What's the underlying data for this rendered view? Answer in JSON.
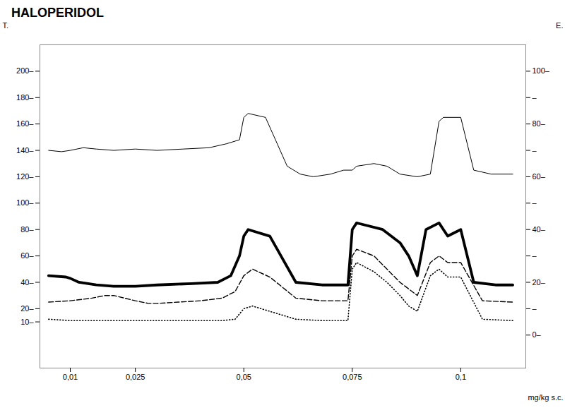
{
  "chart_data": {
    "type": "line",
    "title": "HALOPERIDOL",
    "xlabel": "mg/kg s.c.",
    "ylabel": "T.",
    "y2label": "E.",
    "xlim": [
      0.003,
      0.115
    ],
    "xticks": [
      {
        "value": 0.01,
        "label": "0,01"
      },
      {
        "value": 0.025,
        "label": "0,025"
      },
      {
        "value": 0.05,
        "label": "0,05"
      },
      {
        "value": 0.075,
        "label": "0,075"
      },
      {
        "value": 0.1,
        "label": "0,1"
      }
    ],
    "ylim": [
      -25,
      220
    ],
    "yticks": [
      {
        "value": 10,
        "label": "10–"
      },
      {
        "value": 20,
        "label": "20–"
      },
      {
        "value": 40,
        "label": "40–"
      },
      {
        "value": 60,
        "label": "60–"
      },
      {
        "value": 80,
        "label": "80–"
      },
      {
        "value": 100,
        "label": "100–"
      },
      {
        "value": 120,
        "label": "120–"
      },
      {
        "value": 140,
        "label": "140–"
      },
      {
        "value": 160,
        "label": "160–"
      },
      {
        "value": 180,
        "label": "180–"
      },
      {
        "value": 200,
        "label": "200–"
      }
    ],
    "y2lim": [
      -12.5,
      110
    ],
    "y2ticks": [
      {
        "value": 0,
        "label": "0–"
      },
      {
        "value": 10,
        "label": "–"
      },
      {
        "value": 20,
        "label": "20–"
      },
      {
        "value": 30,
        "label": "–"
      },
      {
        "value": 40,
        "label": "40–"
      },
      {
        "value": 50,
        "label": "–"
      },
      {
        "value": 60,
        "label": "60–"
      },
      {
        "value": 70,
        "label": "–"
      },
      {
        "value": 80,
        "label": "80–"
      },
      {
        "value": 90,
        "label": "–"
      },
      {
        "value": 100,
        "label": "100–"
      }
    ],
    "grid": false,
    "series": [
      {
        "color": "#000000",
        "line_style": "solid",
        "x": [
          0.005,
          0.008,
          0.01,
          0.013,
          0.016,
          0.02,
          0.025,
          0.03,
          0.036,
          0.042,
          0.046,
          0.049,
          0.05,
          0.051,
          0.055,
          0.06,
          0.063,
          0.066,
          0.07,
          0.073,
          0.075,
          0.076,
          0.08,
          0.083,
          0.086,
          0.09,
          0.093,
          0.095,
          0.096,
          0.1,
          0.103,
          0.107,
          0.112
        ],
        "values": [
          140,
          139,
          140,
          142,
          141,
          140,
          141,
          140,
          141,
          142,
          145,
          148,
          165,
          168,
          165,
          128,
          122,
          120,
          122,
          125,
          125,
          128,
          130,
          128,
          122,
          120,
          122,
          162,
          165,
          165,
          125,
          122,
          122
        ]
      },
      {
        "color": "#000000",
        "line_style": "thick",
        "x": [
          0.005,
          0.009,
          0.01,
          0.012,
          0.016,
          0.02,
          0.025,
          0.03,
          0.038,
          0.044,
          0.047,
          0.049,
          0.05,
          0.051,
          0.056,
          0.062,
          0.068,
          0.072,
          0.074,
          0.075,
          0.076,
          0.082,
          0.086,
          0.088,
          0.09,
          0.092,
          0.095,
          0.097,
          0.1,
          0.103,
          0.108,
          0.112
        ],
        "values": [
          45,
          44,
          43,
          40,
          38,
          37,
          37,
          38,
          39,
          40,
          45,
          60,
          75,
          80,
          75,
          40,
          38,
          38,
          38,
          80,
          85,
          80,
          70,
          60,
          45,
          80,
          85,
          75,
          80,
          40,
          38,
          38
        ]
      },
      {
        "color": "#000000",
        "line_style": "dashed",
        "x": [
          0.005,
          0.01,
          0.015,
          0.018,
          0.02,
          0.025,
          0.028,
          0.03,
          0.035,
          0.04,
          0.045,
          0.048,
          0.05,
          0.052,
          0.056,
          0.062,
          0.068,
          0.072,
          0.074,
          0.075,
          0.076,
          0.08,
          0.083,
          0.086,
          0.088,
          0.09,
          0.093,
          0.095,
          0.097,
          0.1,
          0.105,
          0.112
        ],
        "values": [
          25,
          26,
          28,
          30,
          30,
          26,
          24,
          24,
          25,
          26,
          28,
          33,
          45,
          50,
          44,
          28,
          26,
          26,
          26,
          60,
          65,
          60,
          50,
          40,
          35,
          30,
          55,
          60,
          55,
          55,
          26,
          25
        ]
      },
      {
        "color": "#000000",
        "line_style": "dotted",
        "x": [
          0.005,
          0.01,
          0.015,
          0.02,
          0.025,
          0.03,
          0.035,
          0.04,
          0.045,
          0.048,
          0.05,
          0.052,
          0.056,
          0.062,
          0.068,
          0.072,
          0.074,
          0.075,
          0.076,
          0.08,
          0.083,
          0.086,
          0.088,
          0.09,
          0.093,
          0.095,
          0.097,
          0.1,
          0.105,
          0.112
        ],
        "values": [
          12,
          11,
          11,
          11,
          11,
          11,
          11,
          11,
          11,
          12,
          20,
          22,
          18,
          12,
          11,
          11,
          11,
          50,
          55,
          48,
          40,
          30,
          22,
          18,
          45,
          50,
          44,
          44,
          12,
          11
        ]
      }
    ]
  }
}
